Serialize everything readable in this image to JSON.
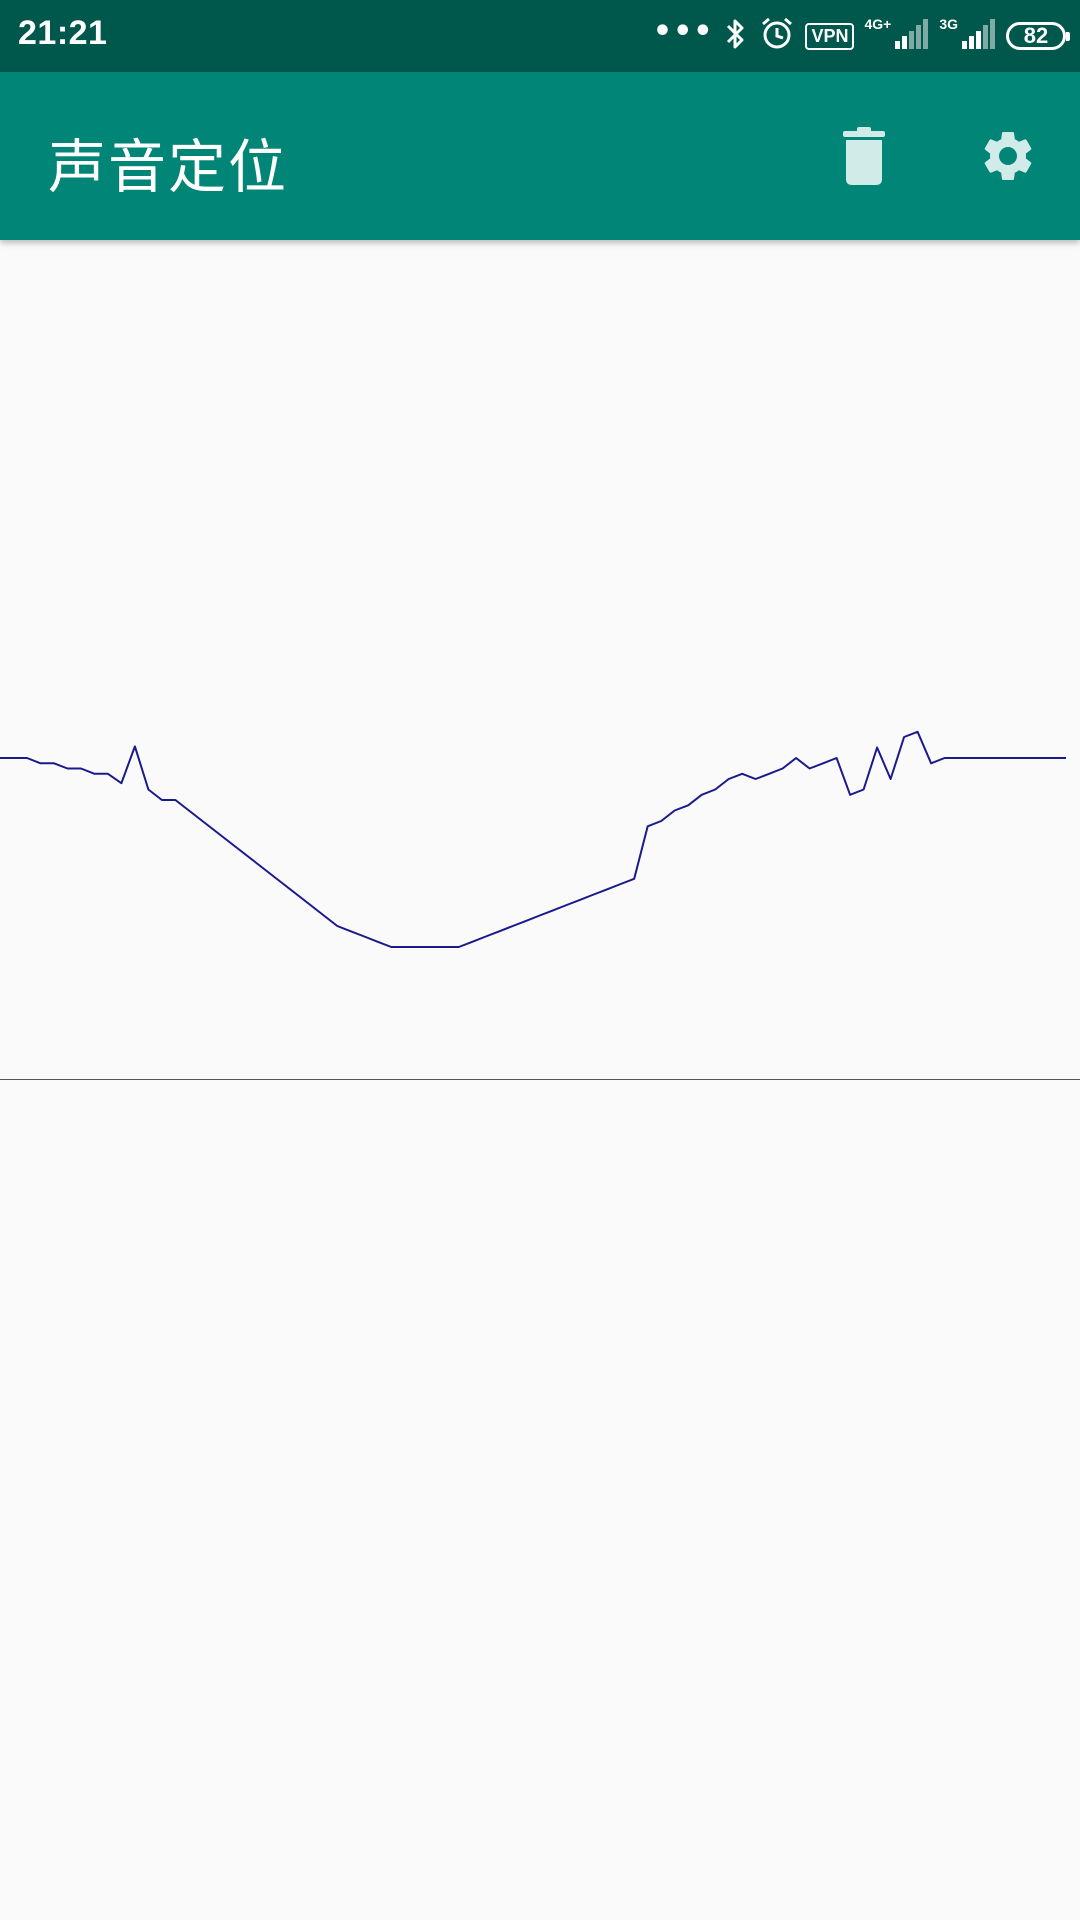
{
  "status_bar": {
    "time": "21:21",
    "dots": "•••",
    "vpn": "VPN",
    "network1": "4G+",
    "network2": "3G",
    "battery": "82",
    "icons": [
      "bluetooth-icon",
      "alarm-icon",
      "signal-icon",
      "signal-icon"
    ]
  },
  "app_bar": {
    "title": "声音定位",
    "actions": [
      "delete-icon",
      "settings-icon"
    ]
  },
  "colors": {
    "status_bar": "#00574b",
    "app_bar": "#008577",
    "icon_tint": "#d0ebe8",
    "line": "#1a1a8c",
    "background": "#fafafa"
  },
  "chart_data": {
    "type": "line",
    "title": "",
    "xlabel": "",
    "ylabel": "",
    "grid": false,
    "x": [
      0,
      1,
      2,
      3,
      4,
      5,
      6,
      7,
      8,
      9,
      10,
      11,
      12,
      13,
      14,
      15,
      16,
      17,
      18,
      19,
      20,
      21,
      22,
      23,
      24,
      25,
      26,
      27,
      28,
      29,
      30,
      31,
      32,
      33,
      34,
      35,
      36,
      37,
      38,
      39,
      40,
      41,
      42,
      43,
      44,
      45,
      46,
      47,
      48,
      49,
      50,
      51,
      52,
      53,
      54,
      55,
      56,
      57,
      58,
      59,
      60,
      61,
      62,
      63,
      64,
      65,
      66,
      67,
      68,
      69,
      70,
      71,
      72,
      73,
      74,
      75,
      76,
      77,
      78,
      79
    ],
    "values": [
      0,
      0,
      0,
      -5,
      -5,
      -10,
      -10,
      -15,
      -15,
      -24,
      11,
      -30,
      -40,
      -40,
      -50,
      -60,
      -70,
      -80,
      -90,
      -100,
      -110,
      -120,
      -130,
      -140,
      -150,
      -160,
      -165,
      -170,
      -175,
      -180,
      -180,
      -180,
      -180,
      -180,
      -180,
      -175,
      -170,
      -165,
      -160,
      -155,
      -150,
      -145,
      -140,
      -135,
      -130,
      -125,
      -120,
      -115,
      -65,
      -60,
      -50,
      -45,
      -35,
      -30,
      -20,
      -15,
      -20,
      -15,
      -10,
      0,
      -10,
      -5,
      0,
      -35,
      -30,
      10,
      -20,
      20,
      25,
      -5,
      0,
      0,
      0,
      0,
      0,
      0,
      0,
      0,
      0,
      0
    ],
    "xlim": [
      0,
      79
    ],
    "ylim": [
      -200,
      40
    ]
  }
}
